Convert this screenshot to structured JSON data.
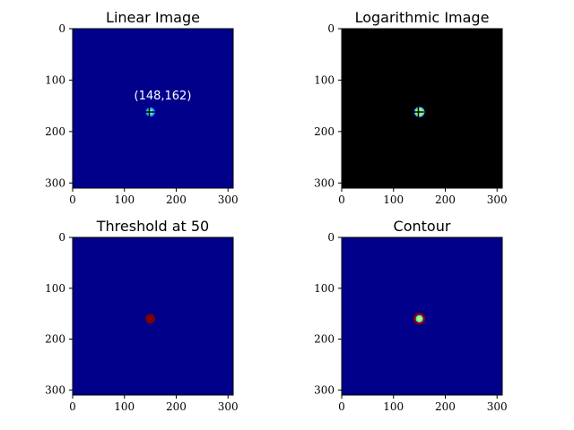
{
  "chart_data": [
    {
      "type": "heatmap",
      "title": "Linear Image",
      "xlim": [
        0,
        310
      ],
      "ylim": [
        0,
        310
      ],
      "y_inverted": true,
      "xticks": [
        0,
        100,
        200,
        300
      ],
      "yticks": [
        0,
        100,
        200,
        300
      ],
      "colormap": "jet",
      "background_color": "#00008b",
      "blob_center": [
        150,
        162
      ],
      "blob_radius": 13,
      "marker": {
        "type": "cross",
        "x": 148,
        "y": 162
      },
      "annotation": {
        "text": "(148,162)",
        "x": 148,
        "y": 162
      }
    },
    {
      "type": "heatmap",
      "title": "Logarithmic Image",
      "xlim": [
        0,
        310
      ],
      "ylim": [
        0,
        310
      ],
      "y_inverted": true,
      "xticks": [
        0,
        100,
        200,
        300
      ],
      "yticks": [
        0,
        100,
        200,
        300
      ],
      "colormap": "jet",
      "background_color": "#000000",
      "blob_center": [
        150,
        162
      ],
      "blob_radius": 14,
      "marker": {
        "type": "cross",
        "x": 148,
        "y": 162
      }
    },
    {
      "type": "heatmap",
      "title": "Threshold at 50",
      "xlim": [
        0,
        310
      ],
      "ylim": [
        0,
        310
      ],
      "y_inverted": true,
      "xticks": [
        0,
        100,
        200,
        300
      ],
      "yticks": [
        0,
        100,
        200,
        300
      ],
      "colormap": "binary-threshold",
      "threshold": 50,
      "background_color": "#00008b",
      "region_color": "#800000",
      "region_center": [
        150,
        160
      ],
      "region_radius": 13
    },
    {
      "type": "heatmap",
      "title": "Contour",
      "xlim": [
        0,
        310
      ],
      "ylim": [
        0,
        310
      ],
      "y_inverted": true,
      "xticks": [
        0,
        100,
        200,
        300
      ],
      "yticks": [
        0,
        100,
        200,
        300
      ],
      "colormap": "jet",
      "background_color": "#00008b",
      "contour_color": "#8b0000",
      "blob_center": [
        150,
        160
      ],
      "blob_radius": 13
    }
  ]
}
